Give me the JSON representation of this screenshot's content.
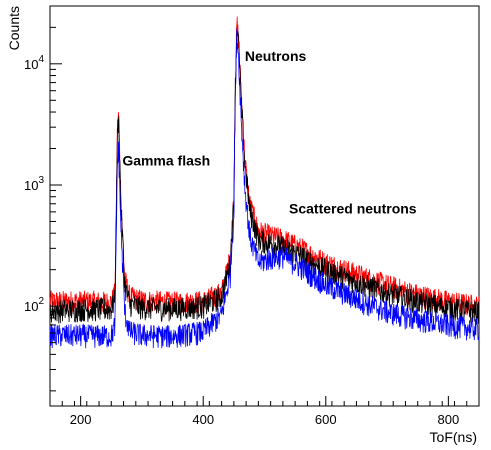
{
  "chart_data": {
    "type": "line",
    "xlabel": "ToF(ns)",
    "ylabel": "Counts",
    "xlim": [
      150,
      850
    ],
    "ylim": [
      15,
      30000
    ],
    "yscale": "log",
    "x_ticks": [
      200,
      400,
      600,
      800
    ],
    "y_ticks": [
      {
        "value": 100,
        "base": "10",
        "exp": "2"
      },
      {
        "value": 1000,
        "base": "10",
        "exp": "3"
      },
      {
        "value": 10000,
        "base": "10",
        "exp": "4"
      }
    ],
    "grid": false,
    "legend": "none",
    "annotations": [
      {
        "text": "Gamma flash",
        "x": 268,
        "y": 1450
      },
      {
        "text": "Neutrons",
        "x": 468,
        "y": 10500
      },
      {
        "text": "Scattered neutrons",
        "x": 540,
        "y": 580
      }
    ],
    "series": [
      {
        "color": "#ff0000",
        "x": [
          150,
          200,
          250,
          256,
          260,
          262,
          266,
          272,
          280,
          300,
          350,
          400,
          430,
          444,
          450,
          452,
          455,
          458,
          462,
          468,
          476,
          490,
          510,
          530,
          560,
          600,
          650,
          700,
          750,
          800,
          850
        ],
        "y": [
          110,
          110,
          108,
          130,
          3000,
          3800,
          700,
          170,
          120,
          112,
          108,
          110,
          130,
          250,
          800,
          6000,
          22000,
          15000,
          5500,
          1600,
          700,
          420,
          380,
          360,
          300,
          230,
          185,
          150,
          125,
          110,
          100
        ]
      },
      {
        "color": "#000000",
        "x": [
          150,
          200,
          250,
          256,
          260,
          262,
          266,
          272,
          280,
          300,
          350,
          400,
          430,
          444,
          450,
          452,
          455,
          458,
          462,
          468,
          476,
          490,
          510,
          530,
          560,
          600,
          650,
          700,
          750,
          800,
          850
        ],
        "y": [
          92,
          95,
          95,
          115,
          2800,
          3500,
          650,
          150,
          105,
          98,
          96,
          100,
          120,
          230,
          750,
          5500,
          21000,
          14000,
          5000,
          1500,
          620,
          360,
          330,
          310,
          260,
          200,
          160,
          130,
          110,
          97,
          90
        ]
      },
      {
        "color": "#0000ff",
        "x": [
          150,
          200,
          250,
          256,
          260,
          262,
          266,
          272,
          280,
          300,
          350,
          400,
          430,
          444,
          450,
          452,
          455,
          458,
          462,
          468,
          476,
          490,
          510,
          530,
          560,
          600,
          650,
          700,
          750,
          800,
          850
        ],
        "y": [
          58,
          58,
          57,
          70,
          1600,
          2000,
          400,
          90,
          62,
          58,
          57,
          62,
          85,
          180,
          600,
          4500,
          18000,
          11000,
          3500,
          950,
          380,
          230,
          250,
          260,
          210,
          150,
          115,
          90,
          78,
          70,
          65
        ]
      }
    ]
  }
}
